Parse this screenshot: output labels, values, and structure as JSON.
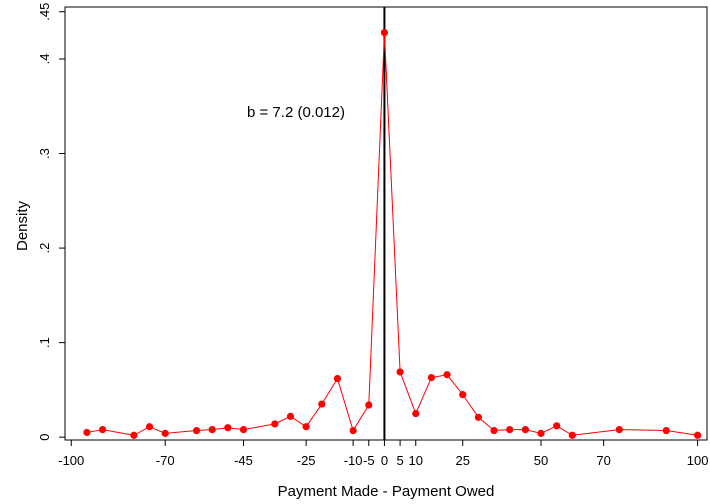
{
  "chart_data": {
    "type": "line",
    "title": "",
    "xlabel": "Payment Made - Payment Owed",
    "ylabel": "Density",
    "xlim": [
      -102,
      103
    ],
    "ylim": [
      -0.003,
      0.455
    ],
    "x_ticks": [
      {
        "value": -100,
        "label": "-100"
      },
      {
        "value": -70,
        "label": "-70"
      },
      {
        "value": -45,
        "label": "-45"
      },
      {
        "value": -25,
        "label": "-25"
      },
      {
        "value": -10,
        "label": "-10"
      },
      {
        "value": -5,
        "label": "-5"
      },
      {
        "value": 0,
        "label": "0"
      },
      {
        "value": 5,
        "label": "5"
      },
      {
        "value": 10,
        "label": "10"
      },
      {
        "value": 25,
        "label": "25"
      },
      {
        "value": 50,
        "label": "50"
      },
      {
        "value": 70,
        "label": "70"
      },
      {
        "value": 100,
        "label": "100"
      }
    ],
    "y_ticks": [
      {
        "value": 0,
        "label": "0"
      },
      {
        "value": 0.1,
        "label": ".1"
      },
      {
        "value": 0.2,
        "label": ".2"
      },
      {
        "value": 0.3,
        "label": ".3"
      },
      {
        "value": 0.4,
        "label": ".4"
      },
      {
        "value": 0.45,
        "label": ".45"
      }
    ],
    "vline_x": 0,
    "annotation": "b = 7.2 (0.012)",
    "grid": false,
    "series": [
      {
        "color": "#ff0000",
        "x": [
          -95,
          -90,
          -80,
          -75,
          -70,
          -60,
          -55,
          -50,
          -45,
          -35,
          -30,
          -25,
          -20,
          -15,
          -10,
          -5,
          0,
          5,
          10,
          15,
          20,
          25,
          30,
          35,
          40,
          45,
          50,
          55,
          60,
          75,
          90,
          100
        ],
        "y": [
          0.005,
          0.008,
          0.002,
          0.011,
          0.004,
          0.007,
          0.008,
          0.01,
          0.008,
          0.014,
          0.022,
          0.011,
          0.035,
          0.062,
          0.007,
          0.034,
          0.428,
          0.069,
          0.025,
          0.063,
          0.066,
          0.045,
          0.021,
          0.007,
          0.008,
          0.008,
          0.004,
          0.012,
          0.002,
          0.008,
          0.007,
          0.002
        ]
      }
    ]
  }
}
